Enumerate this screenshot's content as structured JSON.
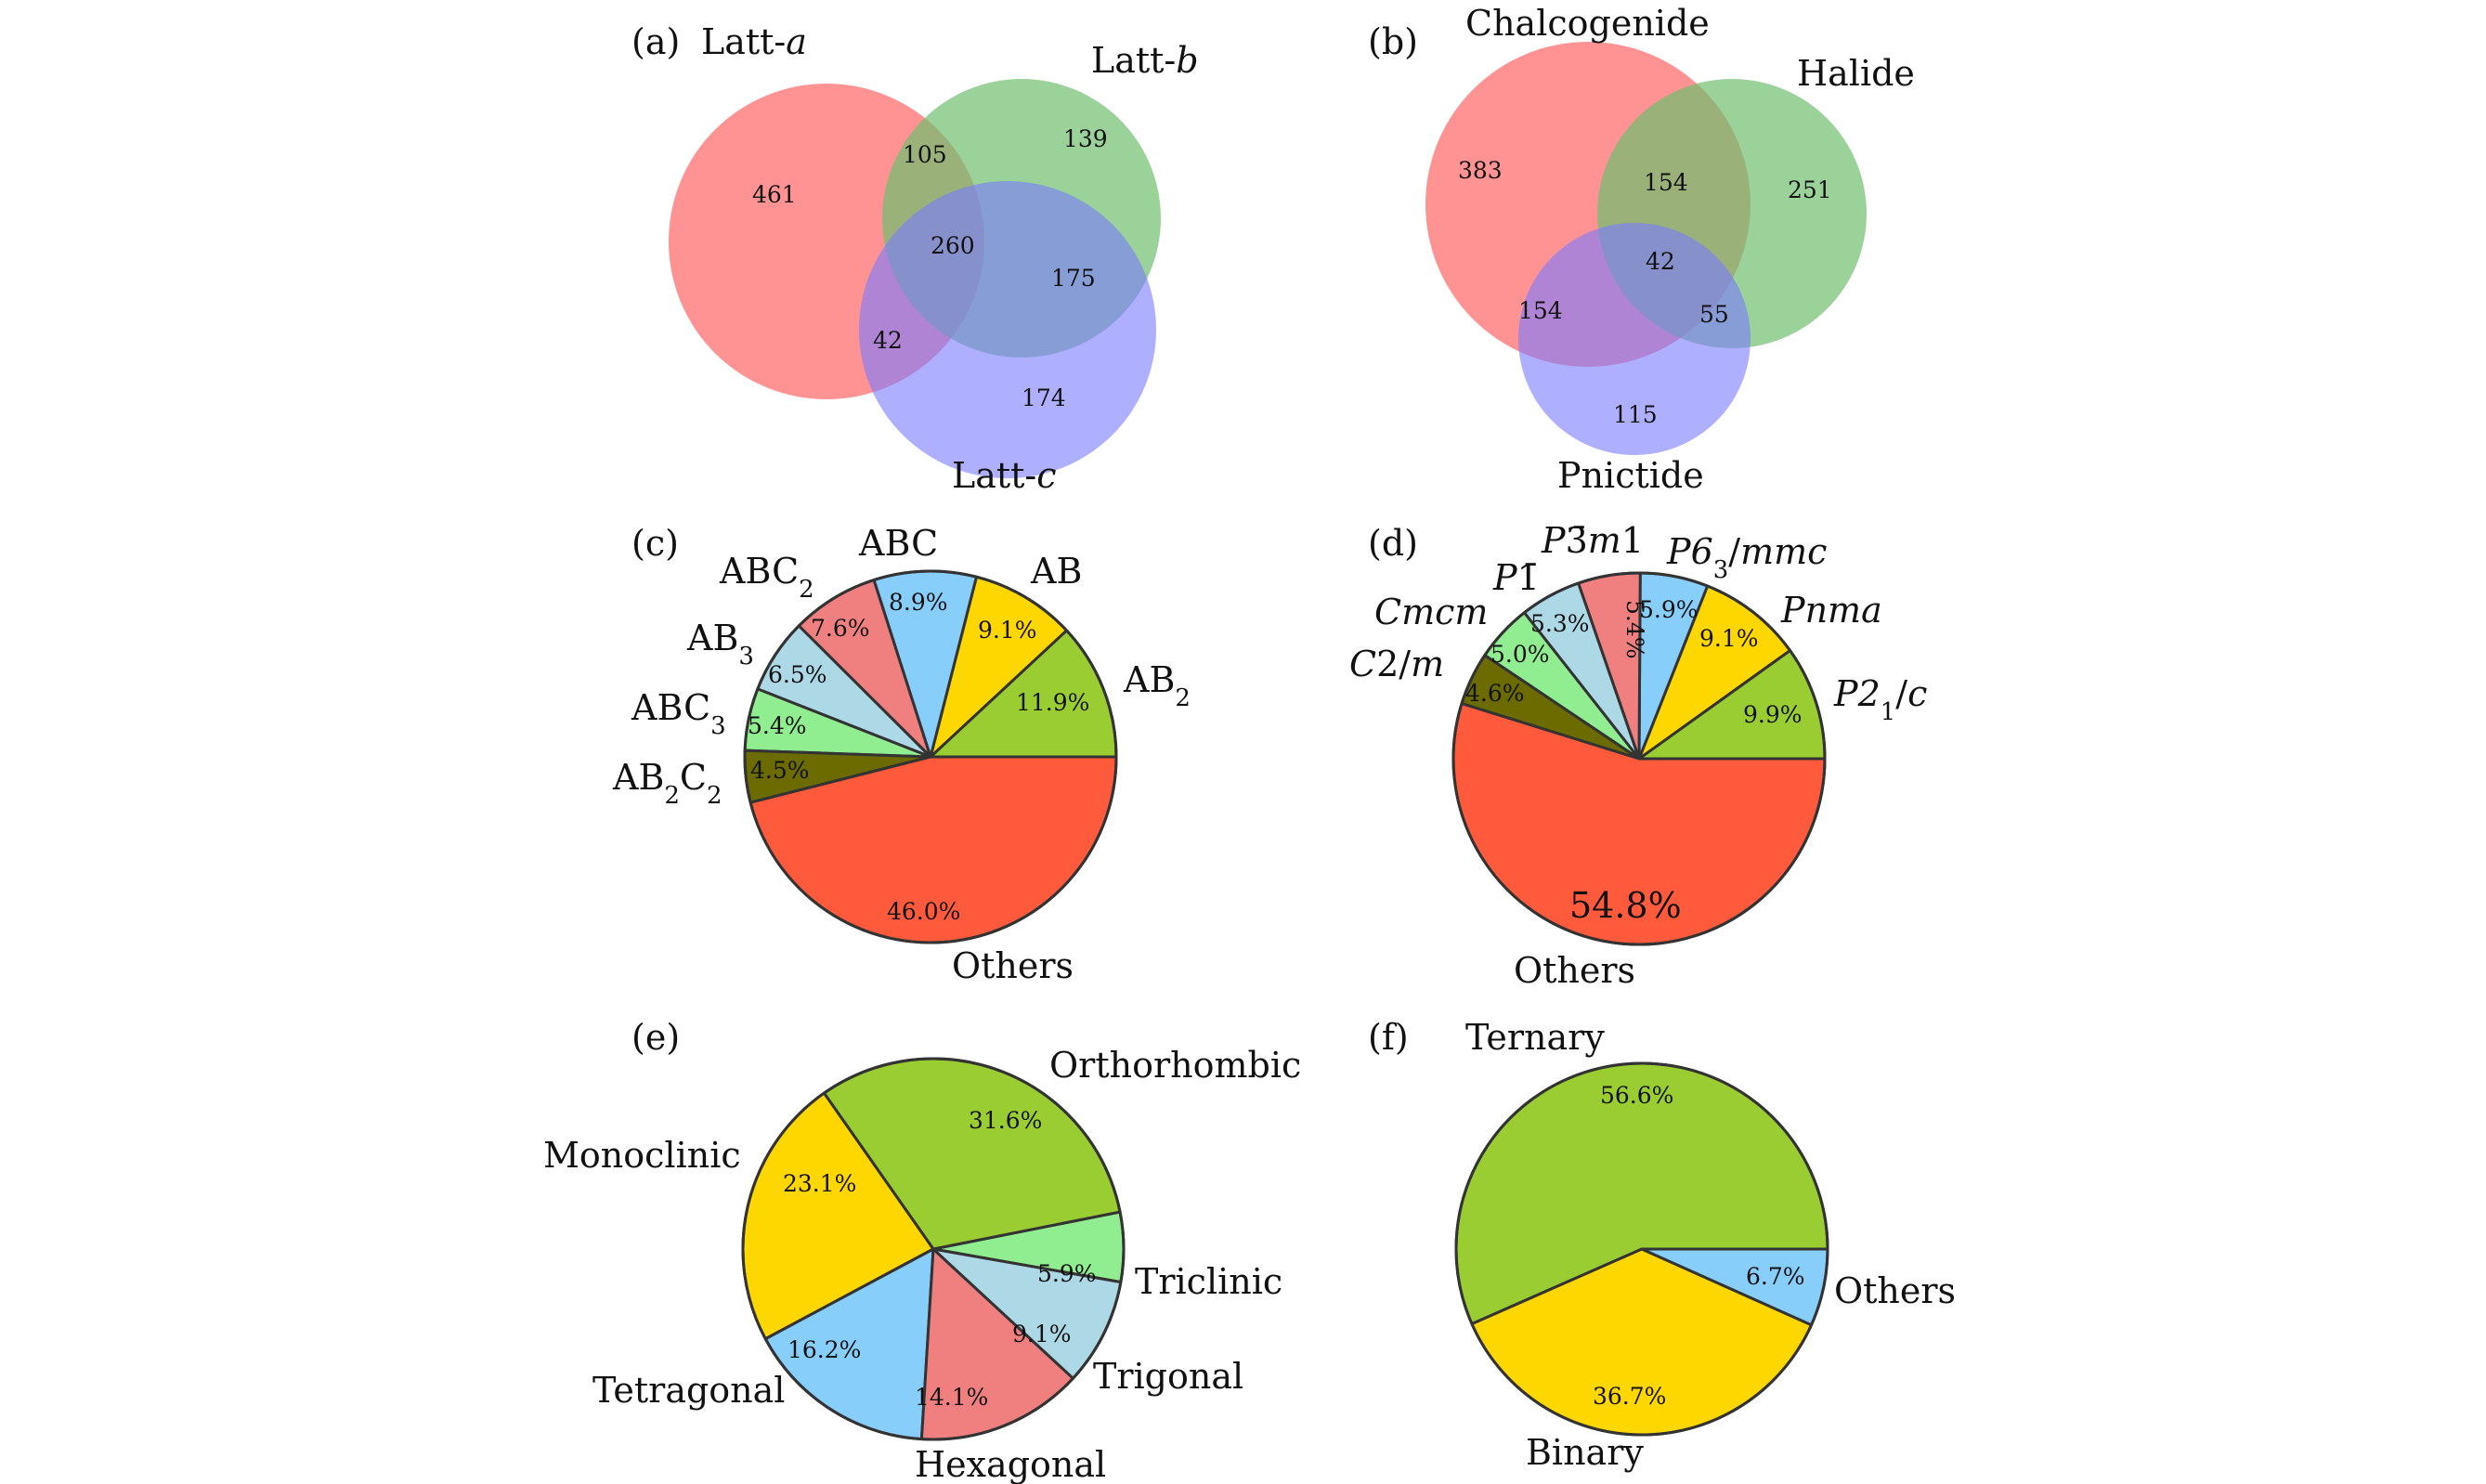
{
  "panel_labels": [
    "(a)",
    "(b)",
    "(c)",
    "(d)",
    "(e)",
    "(f)"
  ],
  "colors": {
    "red": "#ff8080",
    "green": "#7bc47b",
    "blue": "#8282ff",
    "pie_yellowgreen": "#9acd32",
    "pie_gold": "#ffd700",
    "pie_skyblue": "#87cefa",
    "pie_lightcoral": "#f08080",
    "pie_lightblue": "#add8e6",
    "pie_palegreen": "#90ee90",
    "pie_olive": "#6b6b00",
    "pie_tomato": "#ff5a3c"
  },
  "chart_data": [
    {
      "type": "venn",
      "panel": "(a)",
      "sets": [
        "Latt-a",
        "Latt-b",
        "Latt-c"
      ],
      "regions": {
        "a_only": 461,
        "b_only": 139,
        "c_only": 174,
        "ab_only": 105,
        "bc_only": 175,
        "ac_only": 42,
        "abc": 260
      }
    },
    {
      "type": "venn",
      "panel": "(b)",
      "sets": [
        "Chalcogenide",
        "Halide",
        "Pnictide"
      ],
      "regions": {
        "a_only": 383,
        "b_only": 251,
        "c_only": 115,
        "ab_only": 154,
        "bc_only": 55,
        "ac_only": 154,
        "abc": 42
      }
    },
    {
      "type": "pie",
      "panel": "(c)",
      "slices": [
        {
          "label": "AB2",
          "value": 11.9,
          "pct": "11.9%",
          "color": "#9acd32"
        },
        {
          "label": "AB",
          "value": 9.1,
          "pct": "9.1%",
          "color": "#ffd700"
        },
        {
          "label": "ABC",
          "value": 8.9,
          "pct": "8.9%",
          "color": "#87cefa"
        },
        {
          "label": "ABC2",
          "value": 7.6,
          "pct": "7.6%",
          "color": "#f08080"
        },
        {
          "label": "AB3",
          "value": 6.5,
          "pct": "6.5%",
          "color": "#add8e6"
        },
        {
          "label": "ABC3",
          "value": 5.4,
          "pct": "5.4%",
          "color": "#90ee90"
        },
        {
          "label": "AB2C2",
          "value": 4.5,
          "pct": "4.5%",
          "color": "#6b6b00"
        },
        {
          "label": "Others",
          "value": 46.0,
          "pct": "46.0%",
          "color": "#ff5a3c"
        }
      ]
    },
    {
      "type": "pie",
      "panel": "(d)",
      "slices": [
        {
          "label": "P21/c",
          "value": 9.9,
          "pct": "9.9%",
          "color": "#9acd32"
        },
        {
          "label": "Pnma",
          "value": 9.1,
          "pct": "9.1%",
          "color": "#ffd700"
        },
        {
          "label": "P63/mmc",
          "value": 5.9,
          "pct": "5.9%",
          "color": "#87cefa"
        },
        {
          "label": "P-3m1",
          "value": 5.4,
          "pct": "5.4%",
          "color": "#f08080"
        },
        {
          "label": "P-1",
          "value": 5.3,
          "pct": "5.3%",
          "color": "#add8e6"
        },
        {
          "label": "Cmcm",
          "value": 5.0,
          "pct": "5.0%",
          "color": "#90ee90"
        },
        {
          "label": "C2/m",
          "value": 4.6,
          "pct": "4.6%",
          "color": "#6b6b00"
        },
        {
          "label": "Others",
          "value": 54.8,
          "pct": "54.8%",
          "color": "#ff5a3c"
        }
      ]
    },
    {
      "type": "pie",
      "panel": "(e)",
      "slices": [
        {
          "label": "Triclinic",
          "value": 5.9,
          "pct": "5.9%",
          "color": "#90ee90"
        },
        {
          "label": "Orthorhombic",
          "value": 31.6,
          "pct": "31.6%",
          "color": "#9acd32"
        },
        {
          "label": "Monoclinic",
          "value": 23.1,
          "pct": "23.1%",
          "color": "#ffd700"
        },
        {
          "label": "Tetragonal",
          "value": 16.2,
          "pct": "16.2%",
          "color": "#87cefa"
        },
        {
          "label": "Hexagonal",
          "value": 14.1,
          "pct": "14.1%",
          "color": "#f08080"
        },
        {
          "label": "Trigonal",
          "value": 9.1,
          "pct": "9.1%",
          "color": "#add8e6"
        }
      ]
    },
    {
      "type": "pie",
      "panel": "(f)",
      "slices": [
        {
          "label": "Ternary",
          "value": 56.6,
          "pct": "56.6%",
          "color": "#9acd32"
        },
        {
          "label": "Binary",
          "value": 36.7,
          "pct": "36.7%",
          "color": "#ffd700"
        },
        {
          "label": "Others",
          "value": 6.7,
          "pct": "6.7%",
          "color": "#87cefa"
        }
      ]
    }
  ]
}
